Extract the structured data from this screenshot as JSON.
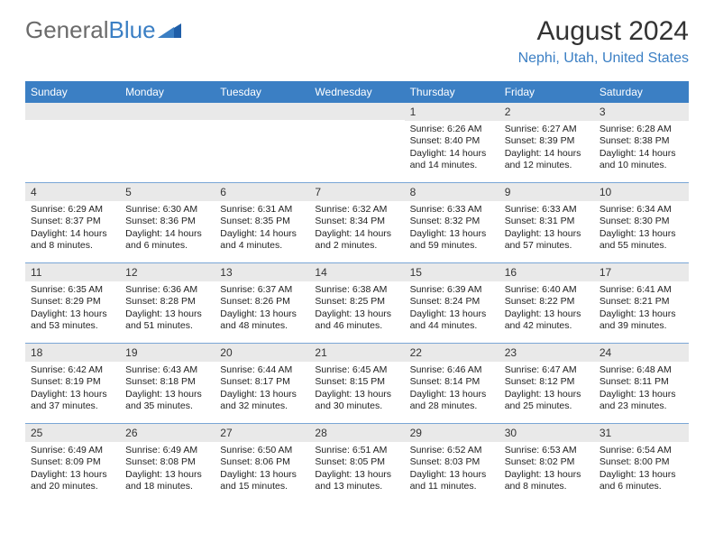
{
  "logo": {
    "text_gray": "General",
    "text_blue": "Blue"
  },
  "header": {
    "month_title": "August 2024",
    "location": "Nephi, Utah, United States"
  },
  "colors": {
    "brand_blue": "#3b7fc4",
    "header_gray": "#6b6b6b",
    "daynum_bg": "#e9e9e9",
    "week_border": "#7aa6d6",
    "text": "#222222"
  },
  "weekdays": [
    "Sunday",
    "Monday",
    "Tuesday",
    "Wednesday",
    "Thursday",
    "Friday",
    "Saturday"
  ],
  "weeks": [
    [
      {
        "n": "",
        "sr": "",
        "ss": "",
        "dl": ""
      },
      {
        "n": "",
        "sr": "",
        "ss": "",
        "dl": ""
      },
      {
        "n": "",
        "sr": "",
        "ss": "",
        "dl": ""
      },
      {
        "n": "",
        "sr": "",
        "ss": "",
        "dl": ""
      },
      {
        "n": "1",
        "sr": "Sunrise: 6:26 AM",
        "ss": "Sunset: 8:40 PM",
        "dl": "Daylight: 14 hours and 14 minutes."
      },
      {
        "n": "2",
        "sr": "Sunrise: 6:27 AM",
        "ss": "Sunset: 8:39 PM",
        "dl": "Daylight: 14 hours and 12 minutes."
      },
      {
        "n": "3",
        "sr": "Sunrise: 6:28 AM",
        "ss": "Sunset: 8:38 PM",
        "dl": "Daylight: 14 hours and 10 minutes."
      }
    ],
    [
      {
        "n": "4",
        "sr": "Sunrise: 6:29 AM",
        "ss": "Sunset: 8:37 PM",
        "dl": "Daylight: 14 hours and 8 minutes."
      },
      {
        "n": "5",
        "sr": "Sunrise: 6:30 AM",
        "ss": "Sunset: 8:36 PM",
        "dl": "Daylight: 14 hours and 6 minutes."
      },
      {
        "n": "6",
        "sr": "Sunrise: 6:31 AM",
        "ss": "Sunset: 8:35 PM",
        "dl": "Daylight: 14 hours and 4 minutes."
      },
      {
        "n": "7",
        "sr": "Sunrise: 6:32 AM",
        "ss": "Sunset: 8:34 PM",
        "dl": "Daylight: 14 hours and 2 minutes."
      },
      {
        "n": "8",
        "sr": "Sunrise: 6:33 AM",
        "ss": "Sunset: 8:32 PM",
        "dl": "Daylight: 13 hours and 59 minutes."
      },
      {
        "n": "9",
        "sr": "Sunrise: 6:33 AM",
        "ss": "Sunset: 8:31 PM",
        "dl": "Daylight: 13 hours and 57 minutes."
      },
      {
        "n": "10",
        "sr": "Sunrise: 6:34 AM",
        "ss": "Sunset: 8:30 PM",
        "dl": "Daylight: 13 hours and 55 minutes."
      }
    ],
    [
      {
        "n": "11",
        "sr": "Sunrise: 6:35 AM",
        "ss": "Sunset: 8:29 PM",
        "dl": "Daylight: 13 hours and 53 minutes."
      },
      {
        "n": "12",
        "sr": "Sunrise: 6:36 AM",
        "ss": "Sunset: 8:28 PM",
        "dl": "Daylight: 13 hours and 51 minutes."
      },
      {
        "n": "13",
        "sr": "Sunrise: 6:37 AM",
        "ss": "Sunset: 8:26 PM",
        "dl": "Daylight: 13 hours and 48 minutes."
      },
      {
        "n": "14",
        "sr": "Sunrise: 6:38 AM",
        "ss": "Sunset: 8:25 PM",
        "dl": "Daylight: 13 hours and 46 minutes."
      },
      {
        "n": "15",
        "sr": "Sunrise: 6:39 AM",
        "ss": "Sunset: 8:24 PM",
        "dl": "Daylight: 13 hours and 44 minutes."
      },
      {
        "n": "16",
        "sr": "Sunrise: 6:40 AM",
        "ss": "Sunset: 8:22 PM",
        "dl": "Daylight: 13 hours and 42 minutes."
      },
      {
        "n": "17",
        "sr": "Sunrise: 6:41 AM",
        "ss": "Sunset: 8:21 PM",
        "dl": "Daylight: 13 hours and 39 minutes."
      }
    ],
    [
      {
        "n": "18",
        "sr": "Sunrise: 6:42 AM",
        "ss": "Sunset: 8:19 PM",
        "dl": "Daylight: 13 hours and 37 minutes."
      },
      {
        "n": "19",
        "sr": "Sunrise: 6:43 AM",
        "ss": "Sunset: 8:18 PM",
        "dl": "Daylight: 13 hours and 35 minutes."
      },
      {
        "n": "20",
        "sr": "Sunrise: 6:44 AM",
        "ss": "Sunset: 8:17 PM",
        "dl": "Daylight: 13 hours and 32 minutes."
      },
      {
        "n": "21",
        "sr": "Sunrise: 6:45 AM",
        "ss": "Sunset: 8:15 PM",
        "dl": "Daylight: 13 hours and 30 minutes."
      },
      {
        "n": "22",
        "sr": "Sunrise: 6:46 AM",
        "ss": "Sunset: 8:14 PM",
        "dl": "Daylight: 13 hours and 28 minutes."
      },
      {
        "n": "23",
        "sr": "Sunrise: 6:47 AM",
        "ss": "Sunset: 8:12 PM",
        "dl": "Daylight: 13 hours and 25 minutes."
      },
      {
        "n": "24",
        "sr": "Sunrise: 6:48 AM",
        "ss": "Sunset: 8:11 PM",
        "dl": "Daylight: 13 hours and 23 minutes."
      }
    ],
    [
      {
        "n": "25",
        "sr": "Sunrise: 6:49 AM",
        "ss": "Sunset: 8:09 PM",
        "dl": "Daylight: 13 hours and 20 minutes."
      },
      {
        "n": "26",
        "sr": "Sunrise: 6:49 AM",
        "ss": "Sunset: 8:08 PM",
        "dl": "Daylight: 13 hours and 18 minutes."
      },
      {
        "n": "27",
        "sr": "Sunrise: 6:50 AM",
        "ss": "Sunset: 8:06 PM",
        "dl": "Daylight: 13 hours and 15 minutes."
      },
      {
        "n": "28",
        "sr": "Sunrise: 6:51 AM",
        "ss": "Sunset: 8:05 PM",
        "dl": "Daylight: 13 hours and 13 minutes."
      },
      {
        "n": "29",
        "sr": "Sunrise: 6:52 AM",
        "ss": "Sunset: 8:03 PM",
        "dl": "Daylight: 13 hours and 11 minutes."
      },
      {
        "n": "30",
        "sr": "Sunrise: 6:53 AM",
        "ss": "Sunset: 8:02 PM",
        "dl": "Daylight: 13 hours and 8 minutes."
      },
      {
        "n": "31",
        "sr": "Sunrise: 6:54 AM",
        "ss": "Sunset: 8:00 PM",
        "dl": "Daylight: 13 hours and 6 minutes."
      }
    ]
  ]
}
